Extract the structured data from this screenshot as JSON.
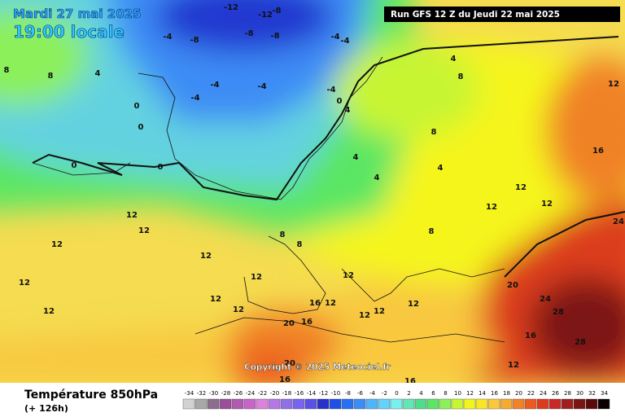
{
  "header": {
    "date": "Mardi 27 mai 2025",
    "time": "19:00 locale",
    "run": "Run GFS 12 Z du Jeudi 22 mai 2025"
  },
  "footer": {
    "title": "Température 850hPa",
    "lead": "(+ 126h)",
    "copyright": "Copyright © 2025 Meteociel.fr"
  },
  "scale": {
    "levels": [
      -34,
      -32,
      -30,
      -28,
      -26,
      -24,
      -22,
      -20,
      -18,
      -16,
      -14,
      -12,
      -10,
      -8,
      -6,
      -4,
      -2,
      0,
      2,
      4,
      6,
      8,
      10,
      12,
      14,
      16,
      18,
      20,
      22,
      24,
      26,
      28,
      30,
      32,
      34
    ],
    "colors": [
      "#d2d2d2",
      "#a8a8a8",
      "#8c6e8c",
      "#9a4f9a",
      "#b05ab0",
      "#c864c8",
      "#dc82dc",
      "#b478e6",
      "#9070e6",
      "#7864f0",
      "#5a50e6",
      "#2832c8",
      "#1e50e6",
      "#2870f0",
      "#3c8cf5",
      "#50b4fa",
      "#64d2fa",
      "#78f0f0",
      "#64e6b4",
      "#50dc8c",
      "#5ae664",
      "#8cf05a",
      "#c8f532",
      "#f0f51e",
      "#fae628",
      "#fac83c",
      "#f5aa32",
      "#f08228",
      "#eb5a1e",
      "#dc3c1e",
      "#c82828",
      "#a01e1e",
      "#7d1414",
      "#5a0a0a",
      "#0a0000"
    ]
  },
  "map": {
    "contour_labels": [
      -12,
      -12,
      -8,
      -4,
      -8,
      -8,
      -8,
      -4,
      -4,
      4,
      8,
      8,
      8,
      4,
      0,
      0,
      -4,
      -4,
      -4,
      -4,
      0,
      4,
      0,
      0,
      4,
      4,
      4,
      8,
      12,
      16,
      12,
      12,
      12,
      12,
      12,
      12,
      12,
      8,
      8,
      8,
      12,
      12,
      12,
      12,
      12,
      12,
      16,
      12,
      12,
      12,
      12,
      20,
      24,
      28,
      28,
      16,
      24,
      20,
      16,
      12,
      20,
      16,
      16
    ]
  }
}
